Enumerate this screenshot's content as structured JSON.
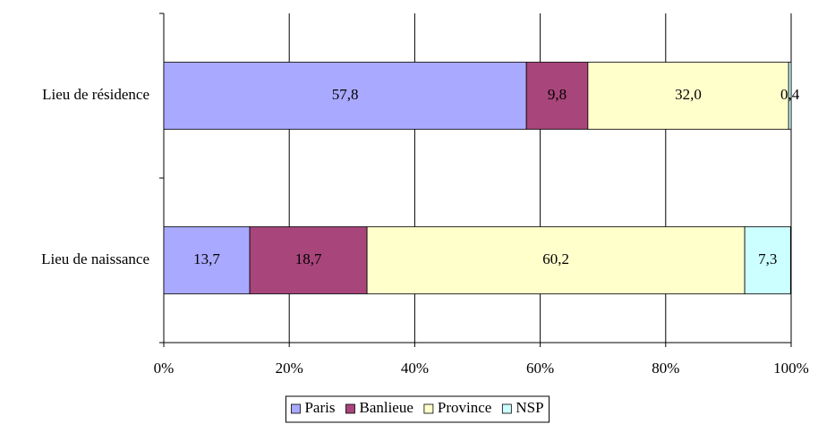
{
  "chart_data": {
    "type": "stacked_bar_horizontal",
    "categories": [
      "Lieu de résidence",
      "Lieu de naissance"
    ],
    "series": [
      {
        "name": "Paris",
        "color": "#a9a9ff",
        "values": [
          57.8,
          13.7
        ],
        "value_labels": [
          "57,8",
          "13,7"
        ]
      },
      {
        "name": "Banlieue",
        "color": "#a8457a",
        "values": [
          9.8,
          18.7
        ],
        "value_labels": [
          "9,8",
          "18,7"
        ]
      },
      {
        "name": "Province",
        "color": "#ffffcc",
        "values": [
          32.0,
          60.2
        ],
        "value_labels": [
          "32,0",
          "60,2"
        ]
      },
      {
        "name": "NSP",
        "color": "#ccffff",
        "values": [
          0.4,
          7.3
        ],
        "value_labels": [
          "0,4",
          "7,3"
        ]
      }
    ],
    "xlim": [
      0,
      100
    ],
    "xticks": [
      {
        "value": 0,
        "label": "0%"
      },
      {
        "value": 20,
        "label": "20%"
      },
      {
        "value": 40,
        "label": "40%"
      },
      {
        "value": 60,
        "label": "60%"
      },
      {
        "value": 80,
        "label": "80%"
      },
      {
        "value": 100,
        "label": "100%"
      }
    ],
    "grid": true,
    "legend": "bottom"
  }
}
